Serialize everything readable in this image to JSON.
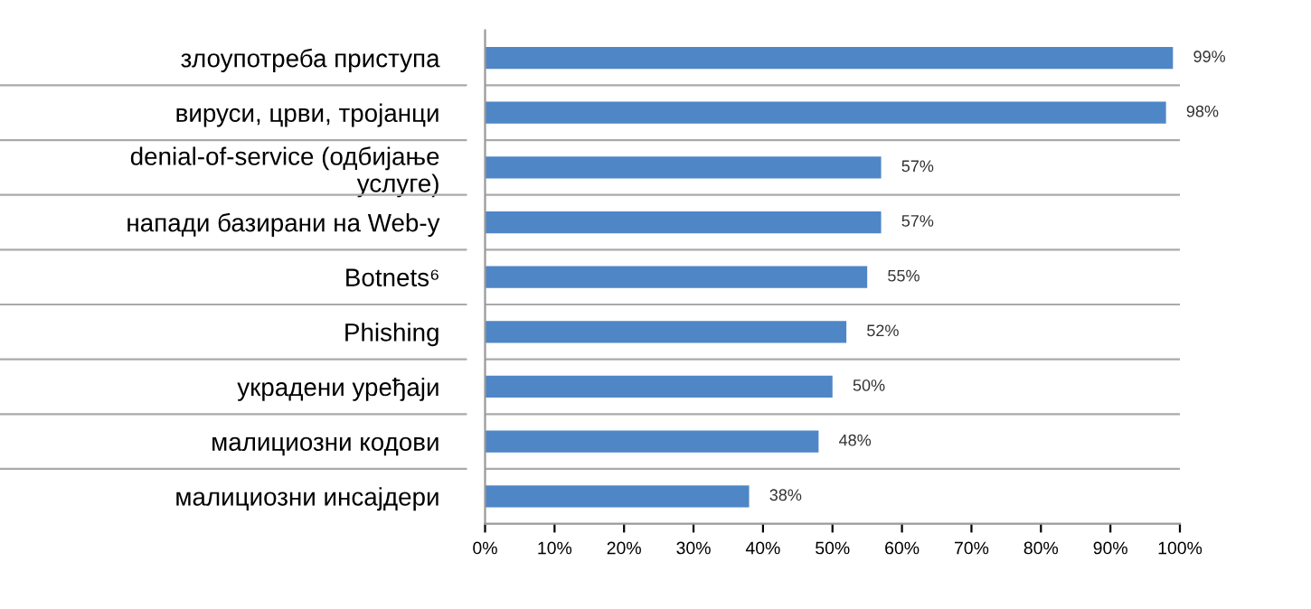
{
  "chart_data": {
    "type": "bar",
    "orientation": "horizontal",
    "categories": [
      "злоупотреба приступа",
      "вируси, црви, тројанци",
      "denial-of-service (одбијање\nуслуге)",
      "напади базирани на Web-у",
      "Botnets⁶",
      "Phishing",
      "украдени уређаји",
      "малициозни кодови",
      "малициозни инсајдери"
    ],
    "values": [
      99,
      98,
      57,
      57,
      55,
      52,
      50,
      48,
      38
    ],
    "value_labels": [
      "99%",
      "98%",
      "57%",
      "57%",
      "55%",
      "52%",
      "50%",
      "48%",
      "38%"
    ],
    "color": "#4f86c6",
    "xlim": [
      0,
      100
    ],
    "xticks": [
      {
        "value": 0,
        "label": "0%"
      },
      {
        "value": 10,
        "label": "10%"
      },
      {
        "value": 20,
        "label": "20%"
      },
      {
        "value": 30,
        "label": "30%"
      },
      {
        "value": 40,
        "label": "40%"
      },
      {
        "value": 50,
        "label": "50%"
      },
      {
        "value": 60,
        "label": "60%"
      },
      {
        "value": 70,
        "label": "70%"
      },
      {
        "value": 80,
        "label": "80%"
      },
      {
        "value": 90,
        "label": "90%"
      },
      {
        "value": 100,
        "label": "100%"
      }
    ],
    "grid": "y"
  }
}
